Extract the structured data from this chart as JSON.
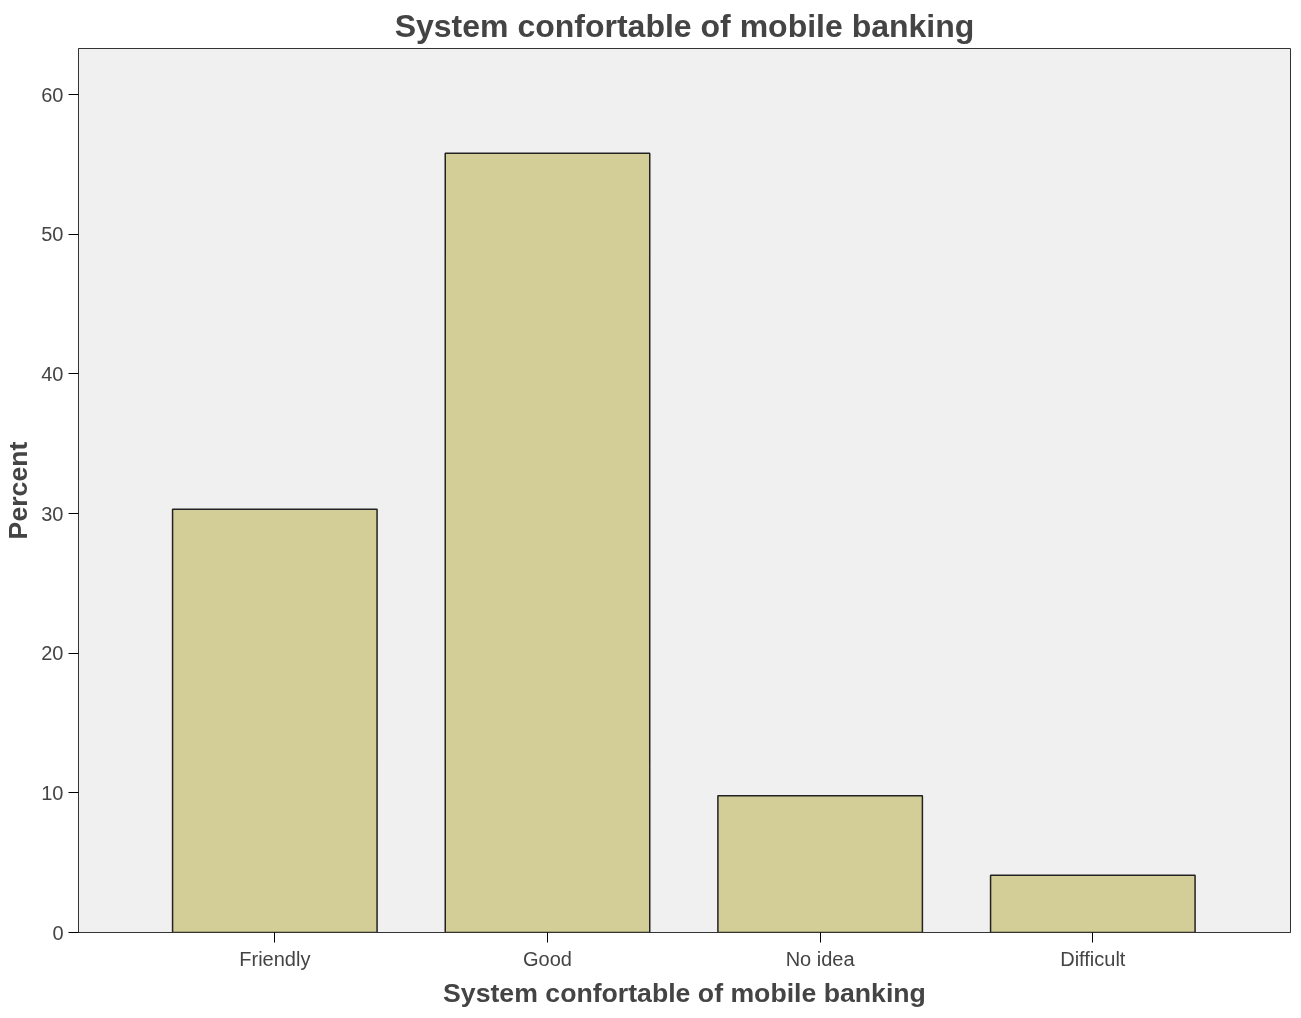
{
  "chart_data": {
    "type": "bar",
    "title": "System confortable of mobile banking",
    "xlabel": "System confortable of mobile banking",
    "ylabel": "Percent",
    "categories": [
      "Friendly",
      "Good",
      "No idea",
      "Difficult"
    ],
    "values": [
      30.3,
      55.8,
      9.8,
      4.1
    ],
    "color": "#d3ce97",
    "ylim": [
      0,
      63.3
    ],
    "yticks": [
      0,
      10,
      20,
      30,
      40,
      50,
      60
    ],
    "grid": false
  }
}
